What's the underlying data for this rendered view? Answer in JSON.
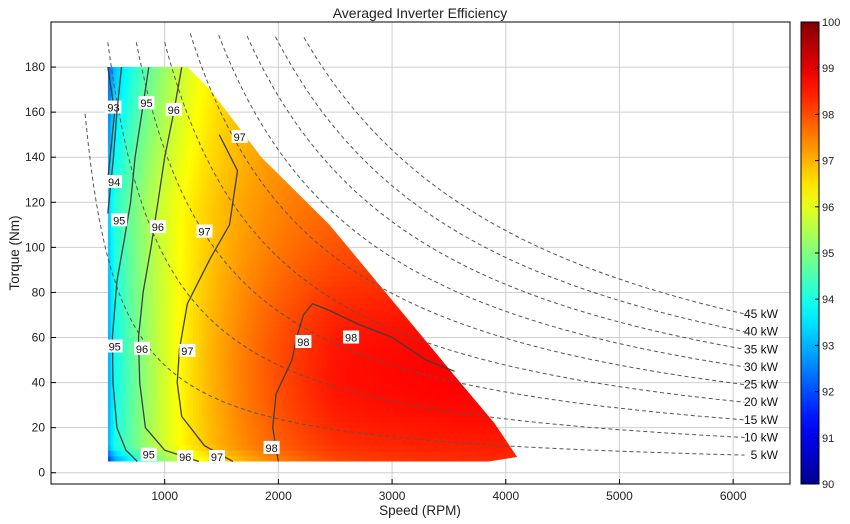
{
  "chart_data": {
    "type": "heatmap",
    "title": "Averaged Inverter Efficiency",
    "xlabel": "Speed (RPM)",
    "ylabel": "Torque (Nm)",
    "xlim": [
      0,
      6500
    ],
    "ylim": [
      -5,
      200
    ],
    "xticks": [
      1000,
      2000,
      3000,
      4000,
      5000,
      6000
    ],
    "yticks": [
      0,
      20,
      40,
      60,
      80,
      100,
      120,
      140,
      160,
      180
    ],
    "grid": true,
    "colorbar": {
      "min": 90,
      "max": 100,
      "ticks": [
        90,
        91,
        92,
        93,
        94,
        95,
        96,
        97,
        98,
        99,
        100
      ]
    },
    "operating_region": [
      [
        500,
        5
      ],
      [
        500,
        180
      ],
      [
        1200,
        180
      ],
      [
        1400,
        170
      ],
      [
        1850,
        140
      ],
      [
        2450,
        110
      ],
      [
        3600,
        40
      ],
      [
        3900,
        22
      ],
      [
        4100,
        7
      ],
      [
        3850,
        5
      ]
    ],
    "contours": [
      {
        "level": 93,
        "points": [
          [
            500,
            180
          ],
          [
            560,
            160
          ],
          [
            520,
            140
          ],
          [
            500,
            130
          ]
        ],
        "labels": [
          [
            550,
            162
          ]
        ]
      },
      {
        "level": 94,
        "points": [
          [
            620,
            180
          ],
          [
            580,
            160
          ],
          [
            550,
            140
          ],
          [
            500,
            115
          ]
        ],
        "labels": [
          [
            555,
            129
          ]
        ]
      },
      {
        "level": 95,
        "points": [
          [
            860,
            180
          ],
          [
            800,
            160
          ],
          [
            740,
            140
          ],
          [
            700,
            120
          ],
          [
            650,
            105
          ],
          [
            580,
            85
          ],
          [
            540,
            60
          ],
          [
            545,
            40
          ],
          [
            580,
            20
          ],
          [
            660,
            10
          ],
          [
            760,
            5
          ]
        ],
        "labels": [
          [
            840,
            164
          ],
          [
            600,
            112
          ],
          [
            560,
            56
          ],
          [
            860,
            8
          ]
        ]
      },
      {
        "level": 96,
        "points": [
          [
            1150,
            180
          ],
          [
            1080,
            160
          ],
          [
            1000,
            140
          ],
          [
            940,
            120
          ],
          [
            880,
            100
          ],
          [
            810,
            80
          ],
          [
            770,
            60
          ],
          [
            780,
            40
          ],
          [
            830,
            20
          ],
          [
            1000,
            10
          ],
          [
            1300,
            5
          ]
        ],
        "labels": [
          [
            1080,
            161
          ],
          [
            940,
            109
          ],
          [
            800,
            55
          ],
          [
            1180,
            7
          ]
        ]
      },
      {
        "level": 97,
        "points": [
          [
            1480,
            150
          ],
          [
            1640,
            134
          ],
          [
            1570,
            110
          ],
          [
            1400,
            95
          ],
          [
            1200,
            75
          ],
          [
            1130,
            55
          ],
          [
            1110,
            40
          ],
          [
            1150,
            25
          ],
          [
            1350,
            12
          ],
          [
            1600,
            5
          ]
        ],
        "labels": [
          [
            1660,
            149
          ],
          [
            1350,
            107
          ],
          [
            1200,
            54
          ],
          [
            1460,
            7
          ]
        ]
      },
      {
        "level": 98,
        "points": [
          [
            2000,
            5
          ],
          [
            1950,
            20
          ],
          [
            1980,
            35
          ],
          [
            2120,
            50
          ],
          [
            2160,
            60
          ],
          [
            2220,
            70
          ],
          [
            2300,
            75
          ],
          [
            2450,
            72
          ],
          [
            2700,
            66
          ],
          [
            3000,
            60
          ],
          [
            3300,
            50
          ],
          [
            3550,
            45
          ]
        ],
        "labels": [
          [
            2220,
            58
          ],
          [
            2640,
            60
          ],
          [
            1940,
            11
          ]
        ]
      }
    ],
    "power_curves_kW": [
      5,
      10,
      15,
      20,
      25,
      30,
      35,
      40,
      45
    ],
    "power_labels": [
      "5 kW",
      "10 kW",
      "15 kW",
      "20 kW",
      "25 kW",
      "30 kW",
      "35 kW",
      "40 kW",
      "45 kW"
    ],
    "colors": {
      "frame": "#000000",
      "grid": "#cfcfcf",
      "contour": "#3f3f3f",
      "power_curve": "#555555"
    }
  }
}
